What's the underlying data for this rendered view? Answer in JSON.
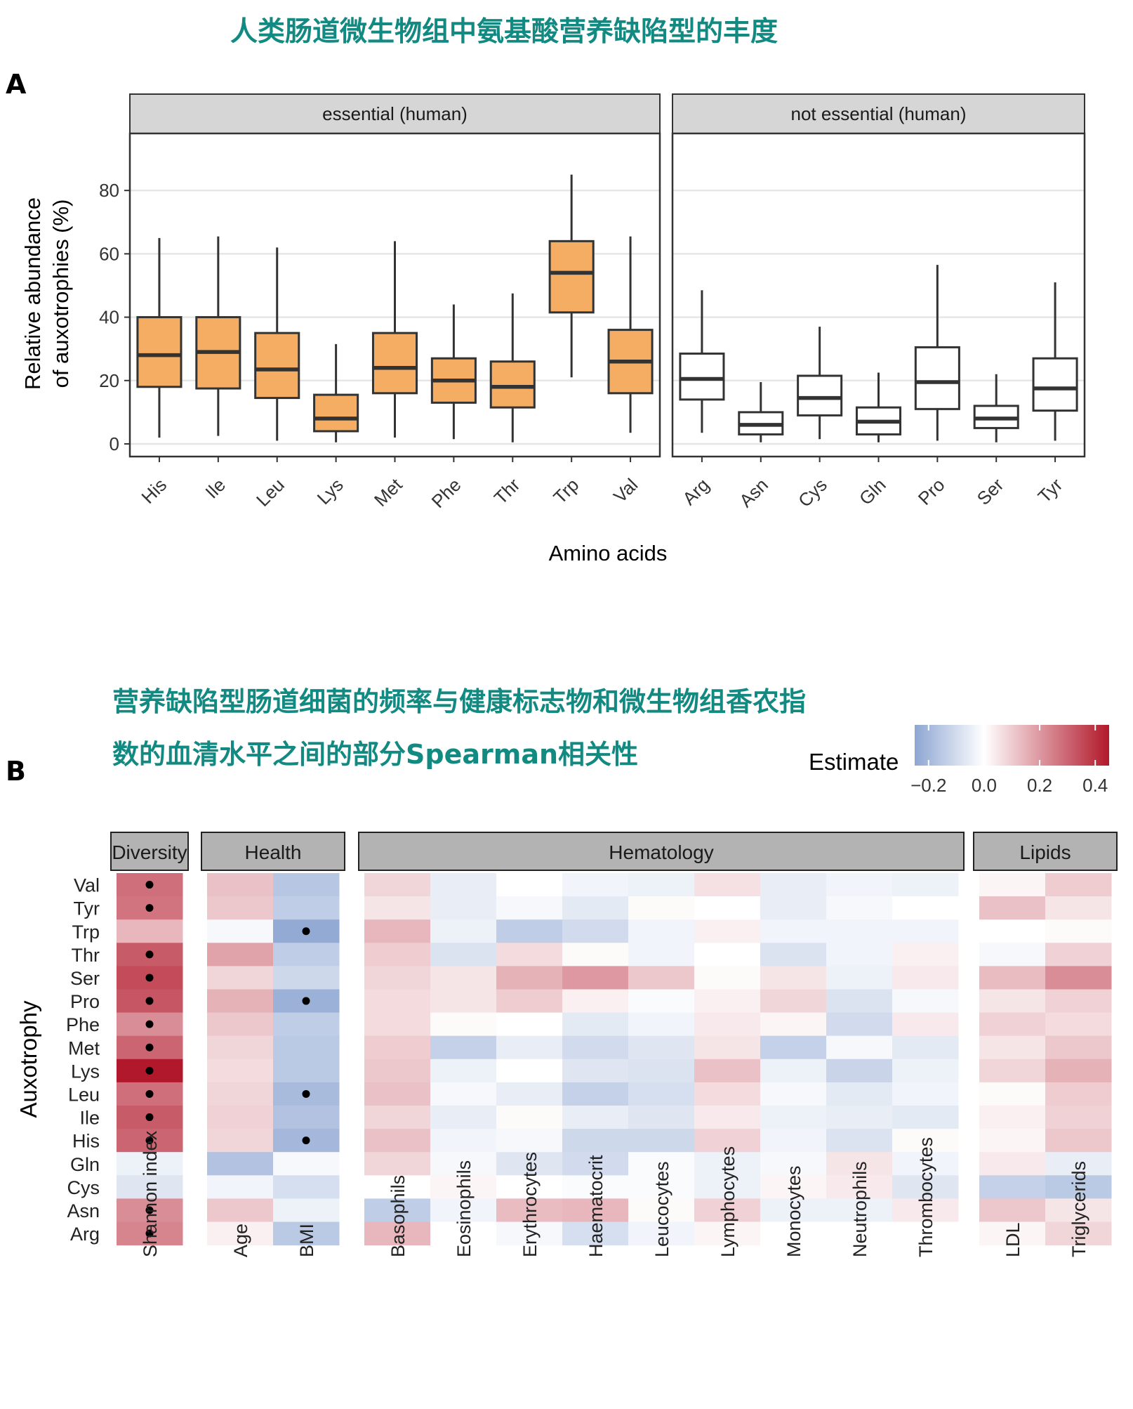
{
  "titles": {
    "panel_a": "人类肠道微生物组中氨基酸营养缺陷型的丰度",
    "panel_b_line1": "营养缺陷型肠道细菌的频率与健康标志物和微生物组香农指",
    "panel_b_line2": "数的血清水平之间的部分Spearman相关性"
  },
  "panel_labels": {
    "a": "A",
    "b": "B"
  },
  "colors": {
    "title": "#128a82",
    "box_fill_essential": "#f4ad62",
    "box_fill_nonessential": "#ffffff",
    "box_stroke": "#333333",
    "strip_fill_a": "#d6d6d6",
    "strip_fill_b": "#b3b3b3",
    "grid": "#e6e6e6",
    "heat_low": "#8ea6d2",
    "heat_mid": "#ffffff",
    "heat_high": "#b2182b"
  },
  "chart_data": [
    {
      "type": "boxplot",
      "xlabel": "Amino acids",
      "ylabel": [
        "Relative abundance",
        "of auxotrophies (%)"
      ],
      "ylim": [
        -4,
        98
      ],
      "yticks": [
        0,
        20,
        40,
        60,
        80
      ],
      "facets": [
        {
          "label": "essential (human)",
          "fill": "orange",
          "categories": [
            "His",
            "Ile",
            "Leu",
            "Lys",
            "Met",
            "Phe",
            "Thr",
            "Trp",
            "Val"
          ],
          "boxes": [
            {
              "min": 2,
              "q1": 18,
              "median": 28,
              "q3": 40,
              "max": 65
            },
            {
              "min": 2.5,
              "q1": 17.5,
              "median": 29,
              "q3": 40,
              "max": 65.5
            },
            {
              "min": 1,
              "q1": 14.5,
              "median": 23.5,
              "q3": 35,
              "max": 62
            },
            {
              "min": 0.5,
              "q1": 4,
              "median": 8,
              "q3": 15.5,
              "max": 31.5
            },
            {
              "min": 2,
              "q1": 16,
              "median": 24,
              "q3": 35,
              "max": 64
            },
            {
              "min": 1.5,
              "q1": 13,
              "median": 20,
              "q3": 27,
              "max": 44
            },
            {
              "min": 0.5,
              "q1": 11.5,
              "median": 18,
              "q3": 26,
              "max": 47.5
            },
            {
              "min": 21,
              "q1": 41.5,
              "median": 54,
              "q3": 64,
              "max": 85
            },
            {
              "min": 3.5,
              "q1": 16,
              "median": 26,
              "q3": 36,
              "max": 65.5
            }
          ]
        },
        {
          "label": "not essential (human)",
          "fill": "white",
          "categories": [
            "Arg",
            "Asn",
            "Cys",
            "Gln",
            "Pro",
            "Ser",
            "Tyr"
          ],
          "boxes": [
            {
              "min": 3.5,
              "q1": 14,
              "median": 20.5,
              "q3": 28.5,
              "max": 48.5
            },
            {
              "min": 0.5,
              "q1": 3,
              "median": 6,
              "q3": 10,
              "max": 19.5
            },
            {
              "min": 1.5,
              "q1": 9,
              "median": 14.5,
              "q3": 21.5,
              "max": 37
            },
            {
              "min": 0.5,
              "q1": 3,
              "median": 7,
              "q3": 11.5,
              "max": 22.5
            },
            {
              "min": 1,
              "q1": 11,
              "median": 19.5,
              "q3": 30.5,
              "max": 56.5
            },
            {
              "min": 0.5,
              "q1": 5,
              "median": 8,
              "q3": 12,
              "max": 22
            },
            {
              "min": 1,
              "q1": 10.5,
              "median": 17.5,
              "q3": 27,
              "max": 51
            }
          ]
        }
      ]
    },
    {
      "type": "heatmap",
      "ylabel": "Auxotrophy",
      "legend": {
        "title": "Estimate",
        "ticks": [
          "−0.2",
          "0.0",
          "0.2",
          "0.4"
        ],
        "range": [
          -0.25,
          0.45
        ]
      },
      "rows": [
        "Val",
        "Tyr",
        "Trp",
        "Thr",
        "Ser",
        "Pro",
        "Phe",
        "Met",
        "Lys",
        "Leu",
        "Ile",
        "His",
        "Gln",
        "Cys",
        "Asn",
        "Arg"
      ],
      "groups": [
        {
          "label": "Diversity",
          "columns": [
            "Shannon index"
          ]
        },
        {
          "label": "Health",
          "columns": [
            "Age",
            "BMI"
          ]
        },
        {
          "label": "Hematology",
          "columns": [
            "Basophils",
            "Eosinophils",
            "Erythrocytes",
            "Haematocrit",
            "Leucocytes",
            "Lymphocytes",
            "Monocytes",
            "Neutrophils",
            "Thrombocytes"
          ]
        },
        {
          "label": "Lipids",
          "columns": [
            "LDL",
            "Triglycerids"
          ]
        }
      ],
      "values": [
        [
          0.28,
          0.12,
          -0.16,
          0.08,
          -0.05,
          0.0,
          -0.03,
          -0.04,
          0.06,
          -0.05,
          -0.03,
          -0.04,
          0.02,
          0.1
        ],
        [
          0.27,
          0.11,
          -0.14,
          0.05,
          -0.05,
          -0.02,
          -0.06,
          0.01,
          0.0,
          -0.05,
          -0.02,
          0.0,
          0.12,
          0.05
        ],
        [
          0.14,
          -0.02,
          -0.24,
          0.14,
          -0.04,
          -0.14,
          -0.1,
          -0.03,
          0.03,
          -0.03,
          -0.03,
          -0.03,
          0.0,
          0.01
        ],
        [
          0.32,
          0.18,
          -0.14,
          0.1,
          -0.08,
          0.07,
          0.01,
          -0.03,
          0.0,
          -0.08,
          -0.03,
          0.03,
          -0.02,
          0.09
        ],
        [
          0.35,
          0.08,
          -0.11,
          0.08,
          0.05,
          0.15,
          0.2,
          0.11,
          0.01,
          0.05,
          -0.04,
          0.04,
          0.13,
          0.22
        ],
        [
          0.33,
          0.15,
          -0.22,
          0.07,
          0.05,
          0.1,
          0.03,
          -0.01,
          0.03,
          0.08,
          -0.08,
          -0.02,
          0.05,
          0.09
        ],
        [
          0.22,
          0.11,
          -0.14,
          0.07,
          0.01,
          0.0,
          -0.06,
          -0.03,
          0.04,
          0.02,
          -0.1,
          0.04,
          0.09,
          0.07
        ],
        [
          0.3,
          0.08,
          -0.15,
          0.1,
          -0.13,
          -0.05,
          -0.1,
          -0.07,
          0.05,
          -0.13,
          -0.02,
          -0.06,
          0.05,
          0.11
        ],
        [
          0.45,
          0.07,
          -0.15,
          0.11,
          -0.04,
          0.0,
          -0.07,
          -0.08,
          0.12,
          -0.04,
          -0.12,
          -0.04,
          0.08,
          0.15
        ],
        [
          0.28,
          0.08,
          -0.19,
          0.12,
          -0.02,
          -0.05,
          -0.13,
          -0.09,
          0.07,
          -0.02,
          -0.06,
          -0.03,
          0.01,
          0.1
        ],
        [
          0.32,
          0.09,
          -0.17,
          0.08,
          -0.05,
          0.01,
          -0.05,
          -0.07,
          0.04,
          -0.04,
          -0.05,
          -0.06,
          0.03,
          0.09
        ],
        [
          0.3,
          0.08,
          -0.2,
          0.12,
          -0.03,
          -0.02,
          -0.11,
          -0.11,
          0.09,
          -0.03,
          -0.08,
          0.01,
          0.02,
          0.11
        ],
        [
          -0.04,
          -0.17,
          -0.02,
          0.08,
          -0.02,
          -0.07,
          -0.1,
          -0.01,
          -0.04,
          -0.02,
          0.05,
          -0.03,
          0.04,
          -0.05
        ],
        [
          -0.07,
          -0.03,
          -0.09,
          0.0,
          0.02,
          0.0,
          -0.01,
          -0.01,
          -0.04,
          0.02,
          0.04,
          -0.07,
          -0.13,
          -0.15
        ],
        [
          0.22,
          0.11,
          -0.04,
          -0.14,
          -0.03,
          0.13,
          0.14,
          0.01,
          0.09,
          -0.04,
          -0.04,
          0.04,
          0.11,
          0.05
        ],
        [
          0.24,
          0.03,
          -0.15,
          0.14,
          0.0,
          -0.02,
          -0.09,
          -0.03,
          0.02,
          0.0,
          0.0,
          0.0,
          0.02,
          0.08
        ]
      ],
      "significant": [
        [
          0,
          0
        ],
        [
          1,
          0
        ],
        [
          2,
          2
        ],
        [
          3,
          0
        ],
        [
          4,
          0
        ],
        [
          5,
          0
        ],
        [
          5,
          2
        ],
        [
          6,
          0
        ],
        [
          7,
          0
        ],
        [
          8,
          0
        ],
        [
          9,
          0
        ],
        [
          9,
          2
        ],
        [
          10,
          0
        ],
        [
          11,
          0
        ],
        [
          11,
          2
        ],
        [
          14,
          0
        ],
        [
          15,
          0
        ]
      ]
    }
  ]
}
